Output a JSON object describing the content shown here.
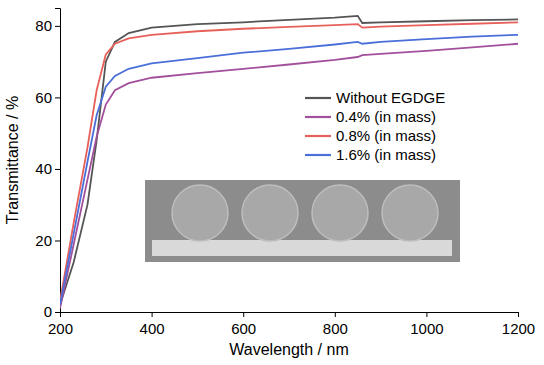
{
  "chart_data": {
    "type": "line",
    "x_label": "Wavelength / nm",
    "y_label": "Transmittance / %",
    "x": [
      200,
      230,
      260,
      280,
      300,
      320,
      350,
      400,
      500,
      600,
      700,
      800,
      850,
      860,
      900,
      1000,
      1100,
      1200
    ],
    "series": [
      {
        "name": "Without EGDGE",
        "color": "#555555",
        "values": [
          2,
          14,
          30,
          48,
          70,
          75.5,
          78,
          79.5,
          80.5,
          81,
          81.7,
          82.3,
          82.8,
          80.8,
          81,
          81.3,
          81.6,
          81.8
        ]
      },
      {
        "name": "0.4% (in mass)",
        "color": "#a24f9c",
        "values": [
          1,
          19,
          37,
          49,
          58,
          62,
          64,
          65.5,
          66.8,
          68,
          69.2,
          70.5,
          71.3,
          71.8,
          72.2,
          73,
          74,
          75
        ]
      },
      {
        "name": "0.8% (in mass)",
        "color": "#e8605a",
        "values": [
          3,
          25,
          46,
          62,
          72,
          75,
          76.5,
          77.5,
          78.5,
          79.2,
          79.7,
          80.2,
          80.5,
          79.5,
          79.8,
          80.2,
          80.6,
          81
        ]
      },
      {
        "name": "1.6% (in mass)",
        "color": "#4a6fd8",
        "values": [
          2,
          22,
          42,
          55,
          63,
          66,
          68,
          69.5,
          71,
          72.5,
          73.6,
          74.8,
          75.5,
          75,
          75.5,
          76.3,
          77,
          77.5
        ]
      }
    ],
    "xlim": [
      200,
      1200
    ],
    "xticks": [
      200,
      400,
      600,
      800,
      1000,
      1200
    ],
    "ylim": [
      0,
      85
    ],
    "yticks": [
      0,
      20,
      40,
      60,
      80
    ],
    "grid": false,
    "legend": "right"
  }
}
